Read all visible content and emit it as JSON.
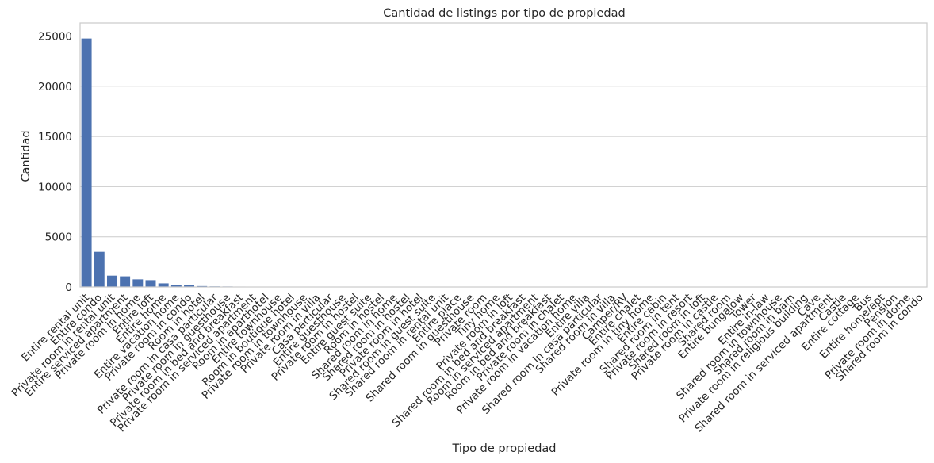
{
  "chart_data": {
    "type": "bar",
    "title": "Cantidad de listings por tipo de propiedad",
    "xlabel": "Tipo de propiedad",
    "ylabel": "Cantidad",
    "ylim": [
      0,
      26300
    ],
    "yticks": [
      0,
      5000,
      10000,
      15000,
      20000,
      25000
    ],
    "grid": "horizontal",
    "bar_color": "#4c72b0",
    "categories": [
      "Entire rental unit",
      "Entire condo",
      "Private room in rental unit",
      "Entire serviced apartment",
      "Private room in home",
      "Entire loft",
      "Entire home",
      "Entire vacation home",
      "Private room in condo",
      "Room in hotel",
      "Private room in casa particular",
      "Private room in guesthouse",
      "Private room in bed and breakfast",
      "Private room in serviced apartment",
      "Room in aparthotel",
      "Entire townhouse",
      "Room in boutique hotel",
      "Private room in townhouse",
      "Private room in villa",
      "Casa particular",
      "Entire guesthouse",
      "Private room in hostel",
      "Entire guest suite",
      "Room in hostel",
      "Shared room in home",
      "Shared room in hostel",
      "Private room in hotel",
      "Shared room in guest suite",
      "Shared room in rental unit",
      "Entire place",
      "Shared room in guesthouse",
      "Private room",
      "Tiny home",
      "Private room in loft",
      "Shared room in bed and breakfast",
      "Room in serviced apartment",
      "Room in bed and breakfast",
      "Private room in chalet",
      "Private room in vacation home",
      "Entire villa",
      "Shared room in casa particular",
      "Shared room in villa",
      "Camper/RV",
      "Entire chalet",
      "Private room in tiny home",
      "Entire cabin",
      "Shared room in tent",
      "Private room in resort",
      "Shared room in loft",
      "Private room in castle",
      "Shared room",
      "Entire bungalow",
      "Tower",
      "Entire in-law",
      "Shared room in townhouse",
      "Shared room in barn",
      "Private room in religious building",
      "Cave",
      "Shared room in serviced apartment",
      "Castle",
      "Entire cottage",
      "Bus",
      "Entire home/apt",
      "Pension",
      "Private room in dome",
      "Shared room in condo"
    ],
    "values": [
      24750,
      3500,
      1130,
      1060,
      760,
      680,
      360,
      230,
      200,
      90,
      60,
      50,
      40,
      35,
      30,
      28,
      25,
      22,
      20,
      18,
      16,
      15,
      14,
      13,
      12,
      11,
      10,
      9,
      9,
      8,
      8,
      7,
      7,
      6,
      6,
      6,
      5,
      5,
      5,
      4,
      4,
      4,
      4,
      3,
      3,
      3,
      3,
      3,
      2,
      2,
      2,
      2,
      2,
      2,
      2,
      1,
      1,
      1,
      1,
      1,
      1,
      1,
      1,
      1,
      1,
      1
    ]
  }
}
